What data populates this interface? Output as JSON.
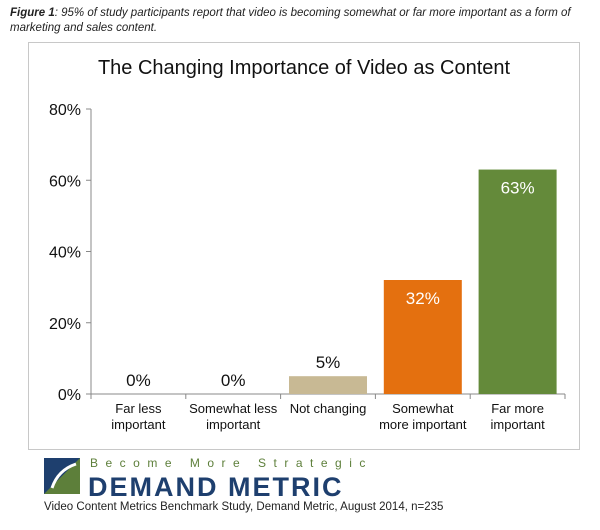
{
  "caption": {
    "figure_label": "Figure 1",
    "text": ": 95% of study participants report that video is becoming somewhat or far more important as a form of marketing and sales content."
  },
  "chart_data": {
    "type": "bar",
    "title": "The Changing Importance of Video as Content",
    "xlabel": "",
    "ylabel": "",
    "categories": [
      [
        "Far less",
        "important"
      ],
      [
        "Somewhat less",
        "important"
      ],
      [
        "Not changing"
      ],
      [
        "Somewhat",
        "more important"
      ],
      [
        "Far more",
        "important"
      ]
    ],
    "values": [
      0,
      0,
      5,
      32,
      63
    ],
    "data_labels": [
      "0%",
      "0%",
      "5%",
      "32%",
      "63%"
    ],
    "colors": [
      "#c8b994",
      "#c8b994",
      "#c8b994",
      "#e4700f",
      "#648a3a"
    ],
    "ylim": [
      0,
      80
    ],
    "yticks": [
      0,
      20,
      40,
      60,
      80
    ],
    "ytick_labels": [
      "0%",
      "20%",
      "40%",
      "60%",
      "80%"
    ],
    "grid": false,
    "legend": "none"
  },
  "brand": {
    "tagline": "Become More Strategic",
    "name": "DEMAND METRIC",
    "logo_icon": "demand-metric-logo-icon",
    "colors": {
      "green": "#5d7f3a",
      "blue": "#1e3f6e"
    }
  },
  "source": "Video Content Metrics Benchmark Study, Demand Metric, August 2014, n=235"
}
